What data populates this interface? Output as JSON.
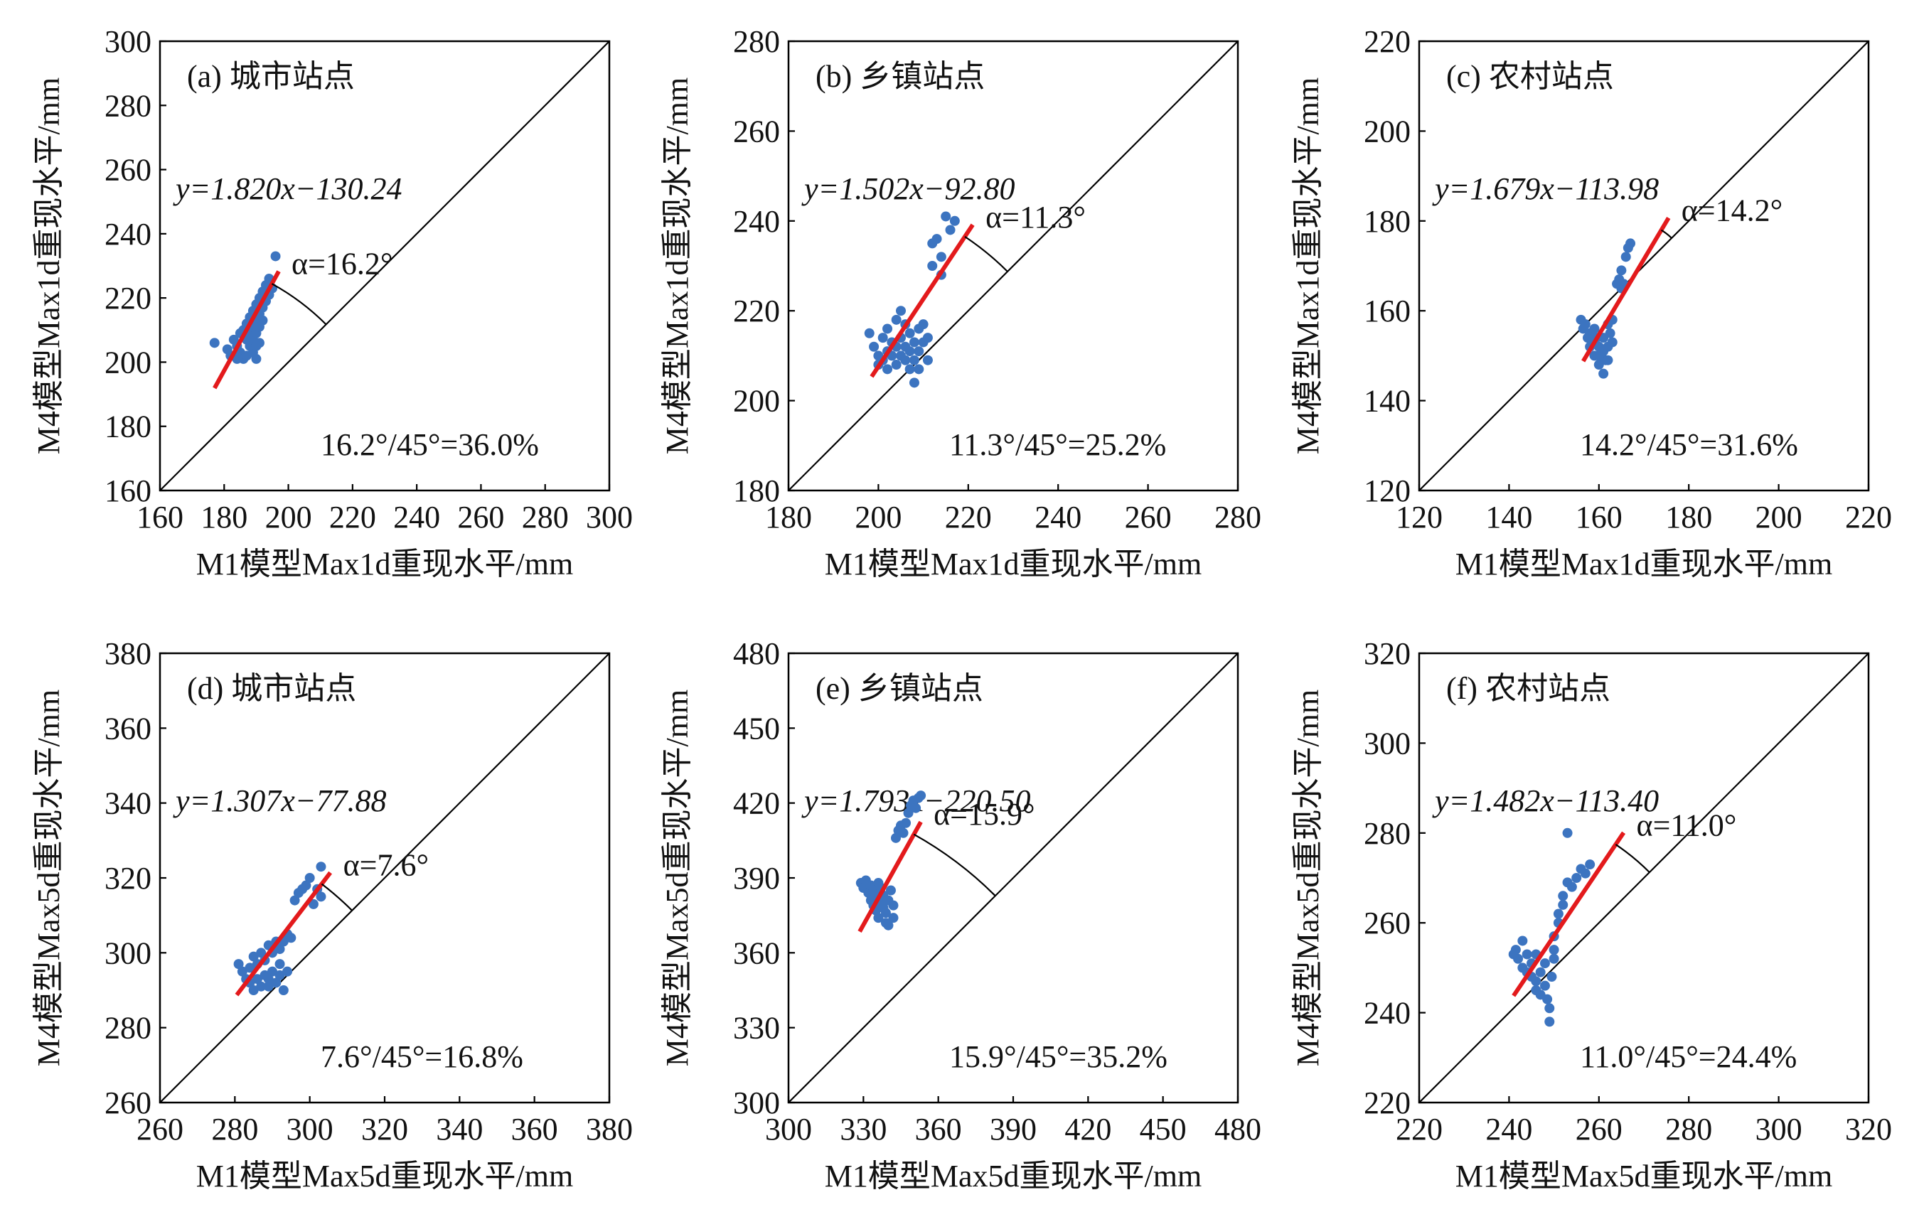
{
  "colors": {
    "points": "#3c74c0",
    "fit": "#e31a1c",
    "axis": "#000000"
  },
  "chart_data": [
    {
      "type": "scatter",
      "panel": "(a)",
      "title": "(a) 城市站点",
      "xlabel": "M1模型Max1d重现水平/mm",
      "ylabel": "M4模型Max1d重现水平/mm",
      "xlim": [
        160,
        300
      ],
      "ylim": [
        160,
        300
      ],
      "xticks": [
        "160",
        "180",
        "200",
        "220",
        "240",
        "260",
        "280",
        "300"
      ],
      "yticks": [
        "160",
        "180",
        "200",
        "220",
        "240",
        "260",
        "280",
        "300"
      ],
      "equation": "y=1.820x−130.24",
      "slope": 1.82,
      "intercept": -130.24,
      "fit_x": [
        177,
        197
      ],
      "angle_label": "α=16.2°",
      "angle_deg": 16.2,
      "ratio_label": "16.2°/45°=36.0%",
      "points": [
        [
          177,
          206
        ],
        [
          181,
          204
        ],
        [
          182,
          202
        ],
        [
          183,
          207
        ],
        [
          184,
          205
        ],
        [
          184,
          201
        ],
        [
          185,
          209
        ],
        [
          185,
          203
        ],
        [
          186,
          210
        ],
        [
          186,
          201
        ],
        [
          187,
          212
        ],
        [
          187,
          207
        ],
        [
          187,
          202
        ],
        [
          188,
          214
        ],
        [
          188,
          209
        ],
        [
          188,
          205
        ],
        [
          189,
          216
        ],
        [
          189,
          211
        ],
        [
          189,
          207
        ],
        [
          189,
          203
        ],
        [
          190,
          218
        ],
        [
          190,
          213
        ],
        [
          190,
          209
        ],
        [
          190,
          201
        ],
        [
          191,
          220
        ],
        [
          191,
          215
        ],
        [
          191,
          211
        ],
        [
          191,
          206
        ],
        [
          192,
          222
        ],
        [
          192,
          217
        ],
        [
          192,
          213
        ],
        [
          193,
          224
        ],
        [
          193,
          219
        ],
        [
          194,
          226
        ],
        [
          194,
          221
        ],
        [
          195,
          223
        ],
        [
          196,
          233
        ],
        [
          190,
          205
        ]
      ]
    },
    {
      "type": "scatter",
      "panel": "(b)",
      "title": "(b) 乡镇站点",
      "xlabel": "M1模型Max1d重现水平/mm",
      "ylabel": "M4模型Max1d重现水平/mm",
      "xlim": [
        180,
        280
      ],
      "ylim": [
        180,
        280
      ],
      "xticks": [
        "180",
        "200",
        "220",
        "240",
        "260",
        "280"
      ],
      "yticks": [
        "180",
        "200",
        "220",
        "240",
        "260",
        "280"
      ],
      "equation": "y=1.502x−92.80",
      "slope": 1.502,
      "intercept": -92.8,
      "fit_x": [
        198.5,
        221
      ],
      "angle_label": "α=11.3°",
      "angle_deg": 11.3,
      "ratio_label": "11.3°/45°=25.2%",
      "points": [
        [
          198,
          215
        ],
        [
          199,
          212
        ],
        [
          200,
          210
        ],
        [
          200,
          208
        ],
        [
          201,
          214
        ],
        [
          201,
          209
        ],
        [
          202,
          216
        ],
        [
          202,
          211
        ],
        [
          202,
          207
        ],
        [
          203,
          213
        ],
        [
          203,
          210
        ],
        [
          204,
          218
        ],
        [
          204,
          212
        ],
        [
          204,
          208
        ],
        [
          205,
          220
        ],
        [
          205,
          214
        ],
        [
          205,
          210
        ],
        [
          206,
          217
        ],
        [
          206,
          212
        ],
        [
          206,
          209
        ],
        [
          207,
          215
        ],
        [
          207,
          211
        ],
        [
          207,
          207
        ],
        [
          208,
          213
        ],
        [
          208,
          209
        ],
        [
          208,
          204
        ],
        [
          209,
          216
        ],
        [
          209,
          211
        ],
        [
          209,
          207
        ],
        [
          210,
          217
        ],
        [
          210,
          213
        ],
        [
          211,
          214
        ],
        [
          211,
          209
        ],
        [
          212,
          230
        ],
        [
          212,
          235
        ],
        [
          213,
          236
        ],
        [
          214,
          228
        ],
        [
          214,
          232
        ],
        [
          215,
          241
        ],
        [
          216,
          238
        ],
        [
          217,
          240
        ]
      ]
    },
    {
      "type": "scatter",
      "panel": "(c)",
      "title": "(c) 农村站点",
      "xlabel": "M1模型Max1d重现水平/mm",
      "ylabel": "M4模型Max1d重现水平/mm",
      "xlim": [
        120,
        220
      ],
      "ylim": [
        120,
        220
      ],
      "xticks": [
        "120",
        "140",
        "160",
        "180",
        "200",
        "220"
      ],
      "yticks": [
        "120",
        "140",
        "160",
        "180",
        "200",
        "220"
      ],
      "equation": "y=1.679x−113.98",
      "slope": 1.679,
      "intercept": -113.98,
      "fit_x": [
        156.5,
        175.5
      ],
      "angle_label": "α=14.2°",
      "angle_deg": 14.2,
      "ratio_label": "14.2°/45°=31.6%",
      "points": [
        [
          156,
          158
        ],
        [
          156.5,
          156
        ],
        [
          157,
          157
        ],
        [
          157.5,
          154
        ],
        [
          158,
          155
        ],
        [
          158,
          152
        ],
        [
          158.5,
          153
        ],
        [
          159,
          156
        ],
        [
          159,
          150
        ],
        [
          159.5,
          154
        ],
        [
          160,
          152
        ],
        [
          160,
          148
        ],
        [
          160.5,
          150
        ],
        [
          161,
          154
        ],
        [
          161,
          146
        ],
        [
          161.5,
          149
        ],
        [
          162,
          152
        ],
        [
          162,
          157
        ],
        [
          162.5,
          155
        ],
        [
          163,
          158
        ],
        [
          163,
          153
        ],
        [
          164,
          166
        ],
        [
          164.5,
          167
        ],
        [
          165,
          169
        ],
        [
          165,
          165
        ],
        [
          166,
          172
        ],
        [
          166.5,
          174
        ],
        [
          167,
          175
        ],
        [
          165.5,
          166
        ],
        [
          160,
          150
        ],
        [
          161,
          151
        ],
        [
          162,
          149
        ]
      ]
    },
    {
      "type": "scatter",
      "panel": "(d)",
      "title": "(d) 城市站点",
      "xlabel": "M1模型Max5d重现水平/mm",
      "ylabel": "M4模型Max5d重现水平/mm",
      "xlim": [
        260,
        380
      ],
      "ylim": [
        260,
        380
      ],
      "xticks": [
        "260",
        "280",
        "300",
        "320",
        "340",
        "360",
        "380"
      ],
      "yticks": [
        "260",
        "280",
        "300",
        "320",
        "340",
        "360",
        "380"
      ],
      "equation": "y=1.307x−77.88",
      "slope": 1.307,
      "intercept": -77.88,
      "fit_x": [
        280.5,
        305.5
      ],
      "angle_label": "α=7.6°",
      "angle_deg": 7.6,
      "ratio_label": "7.6°/45°=16.8%",
      "points": [
        [
          281,
          297
        ],
        [
          282,
          295
        ],
        [
          283,
          293
        ],
        [
          284,
          296
        ],
        [
          284,
          292
        ],
        [
          285,
          299
        ],
        [
          285,
          290
        ],
        [
          286,
          297
        ],
        [
          286,
          293
        ],
        [
          287,
          300
        ],
        [
          287,
          291
        ],
        [
          288,
          298
        ],
        [
          288,
          294
        ],
        [
          289,
          302
        ],
        [
          289,
          291
        ],
        [
          290,
          300
        ],
        [
          290,
          295
        ],
        [
          291,
          303
        ],
        [
          291,
          292
        ],
        [
          292,
          301
        ],
        [
          292,
          297
        ],
        [
          293,
          303
        ],
        [
          293,
          290
        ],
        [
          294,
          305
        ],
        [
          295,
          304
        ],
        [
          296,
          314
        ],
        [
          297,
          316
        ],
        [
          298,
          317
        ],
        [
          299,
          318
        ],
        [
          300,
          320
        ],
        [
          301,
          313
        ],
        [
          302,
          317
        ],
        [
          303,
          323
        ],
        [
          303,
          315
        ],
        [
          289,
          293
        ],
        [
          292,
          294
        ],
        [
          294,
          295
        ]
      ]
    },
    {
      "type": "scatter",
      "panel": "(e)",
      "title": "(e) 乡镇站点",
      "xlabel": "M1模型Max5d重现水平/mm",
      "ylabel": "M4模型Max5d重现水平/mm",
      "xlim": [
        300,
        480
      ],
      "ylim": [
        300,
        480
      ],
      "xticks": [
        "300",
        "330",
        "360",
        "390",
        "420",
        "450",
        "480"
      ],
      "yticks": [
        "300",
        "330",
        "360",
        "390",
        "420",
        "450",
        "480"
      ],
      "equation": "y=1.793x−220.50",
      "slope": 1.793,
      "intercept": -220.5,
      "fit_x": [
        328.5,
        353
      ],
      "angle_label": "α=15.9°",
      "angle_deg": 15.9,
      "ratio_label": "15.9°/45°=35.2%",
      "points": [
        [
          329,
          388
        ],
        [
          330,
          386
        ],
        [
          331,
          389
        ],
        [
          332,
          384
        ],
        [
          333,
          387
        ],
        [
          333,
          381
        ],
        [
          334,
          385
        ],
        [
          334,
          379
        ],
        [
          335,
          383
        ],
        [
          335,
          377
        ],
        [
          336,
          388
        ],
        [
          336,
          374
        ],
        [
          337,
          380
        ],
        [
          337,
          386
        ],
        [
          338,
          378
        ],
        [
          338,
          383
        ],
        [
          339,
          372
        ],
        [
          339,
          376
        ],
        [
          340,
          381
        ],
        [
          340,
          371
        ],
        [
          341,
          385
        ],
        [
          342,
          379
        ],
        [
          342,
          374
        ],
        [
          343,
          406
        ],
        [
          344,
          409
        ],
        [
          345,
          411
        ],
        [
          346,
          408
        ],
        [
          347,
          412
        ],
        [
          348,
          416
        ],
        [
          349,
          419
        ],
        [
          350,
          421
        ],
        [
          351,
          418
        ],
        [
          352,
          422
        ],
        [
          353,
          423
        ]
      ]
    },
    {
      "type": "scatter",
      "panel": "(f)",
      "title": "(f) 农村站点",
      "xlabel": "M1模型Max5d重现水平/mm",
      "ylabel": "M4模型Max5d重现水平/mm",
      "xlim": [
        220,
        320
      ],
      "ylim": [
        220,
        320
      ],
      "xticks": [
        "220",
        "240",
        "260",
        "280",
        "300",
        "320"
      ],
      "yticks": [
        "220",
        "240",
        "260",
        "280",
        "300",
        "320"
      ],
      "equation": "y=1.482x−113.40",
      "slope": 1.482,
      "intercept": -113.4,
      "fit_x": [
        241,
        265.5
      ],
      "angle_label": "α=11.0°",
      "angle_deg": 11.0,
      "ratio_label": "11.0°/45°=24.4%",
      "points": [
        [
          241,
          253
        ],
        [
          241.5,
          254
        ],
        [
          242,
          252
        ],
        [
          243,
          250
        ],
        [
          243,
          256
        ],
        [
          244,
          253
        ],
        [
          245,
          251
        ],
        [
          245,
          248
        ],
        [
          246,
          247
        ],
        [
          246,
          253
        ],
        [
          247,
          249
        ],
        [
          247,
          244
        ],
        [
          248,
          246
        ],
        [
          248,
          251
        ],
        [
          248.5,
          243
        ],
        [
          249,
          241
        ],
        [
          249,
          238
        ],
        [
          249.5,
          248
        ],
        [
          250,
          254
        ],
        [
          250,
          257
        ],
        [
          251,
          260
        ],
        [
          251,
          262
        ],
        [
          252,
          264
        ],
        [
          252,
          266
        ],
        [
          253,
          269
        ],
        [
          253,
          280
        ],
        [
          254,
          268
        ],
        [
          255,
          270
        ],
        [
          256,
          272
        ],
        [
          257,
          271
        ],
        [
          258,
          273
        ],
        [
          244,
          249
        ],
        [
          246,
          245
        ],
        [
          250,
          252
        ]
      ]
    }
  ]
}
